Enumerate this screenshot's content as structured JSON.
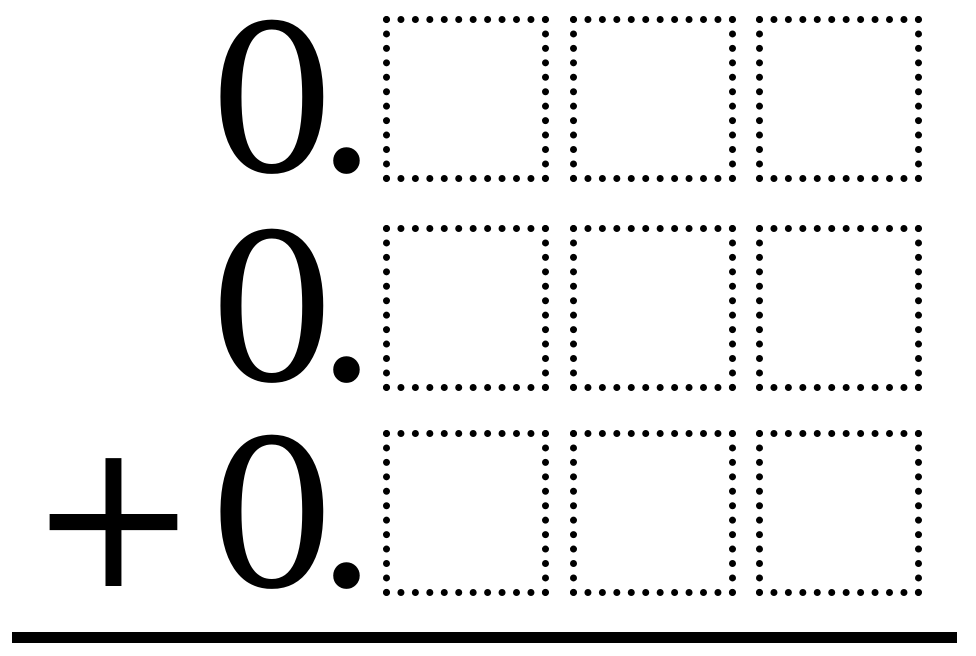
{
  "colors": {
    "ink": "#000000",
    "paper": "#ffffff"
  },
  "problem": {
    "operator": "+",
    "rows": [
      {
        "integer": "0",
        "point": "."
      },
      {
        "integer": "0",
        "point": "."
      },
      {
        "integer": "0",
        "point": "."
      }
    ],
    "boxes_per_row": 3
  }
}
